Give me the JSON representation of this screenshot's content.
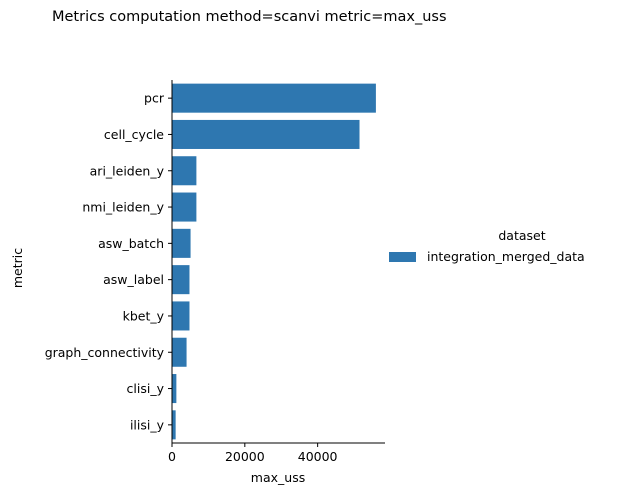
{
  "chart_data": {
    "type": "bar",
    "orientation": "horizontal",
    "title": "Metrics computation method=scanvi metric=max_uss",
    "xlabel": "max_uss",
    "ylabel": "metric",
    "categories": [
      "pcr",
      "cell_cycle",
      "ari_leiden_y",
      "nmi_leiden_y",
      "asw_batch",
      "asw_label",
      "kbet_y",
      "graph_connectivity",
      "clisi_y",
      "ilisi_y"
    ],
    "series": [
      {
        "name": "integration_merged_data",
        "color": "#2e77b0",
        "values": [
          56000,
          51500,
          6700,
          6700,
          5100,
          4800,
          4800,
          4000,
          1200,
          1000
        ]
      }
    ],
    "xlim": [
      0,
      58500
    ],
    "xticks": [
      0,
      20000,
      40000
    ],
    "xtick_labels": [
      "0",
      "20000",
      "40000"
    ],
    "grid": false,
    "legend": {
      "title": "dataset",
      "placement": "right",
      "entries": [
        "integration_merged_data"
      ]
    }
  }
}
